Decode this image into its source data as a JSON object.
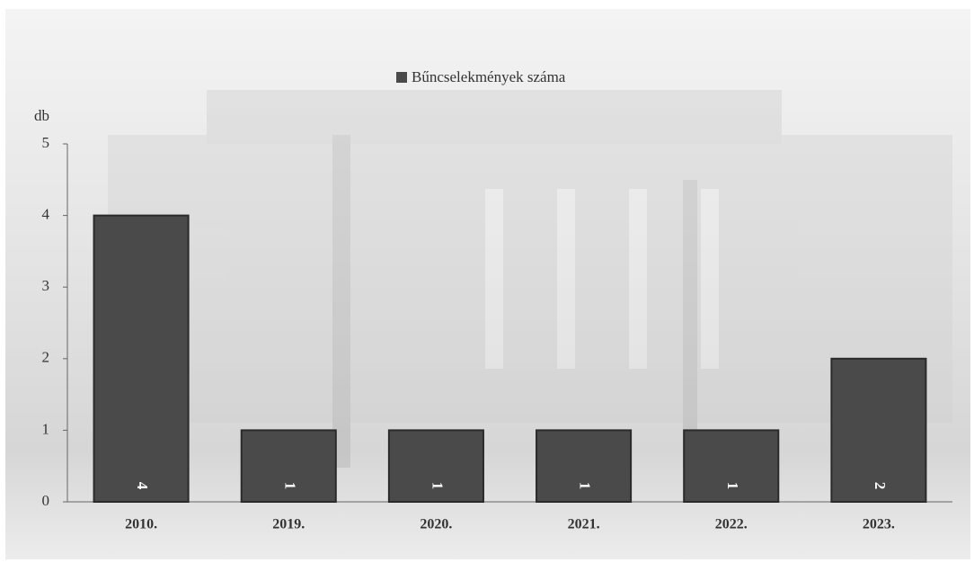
{
  "chart_data": {
    "type": "bar",
    "y_label": "db",
    "legend_position": "top",
    "series": [
      {
        "name": "Bűncselekmények száma",
        "color": "#4a4a4a",
        "values": [
          4,
          1,
          1,
          1,
          1,
          2
        ]
      }
    ],
    "categories": [
      "2010.",
      "2019.",
      "2020.",
      "2021.",
      "2022.",
      "2023."
    ],
    "ylim": [
      0,
      5
    ],
    "yticks": [
      0,
      1,
      2,
      3,
      4,
      5
    ],
    "grid": false
  }
}
